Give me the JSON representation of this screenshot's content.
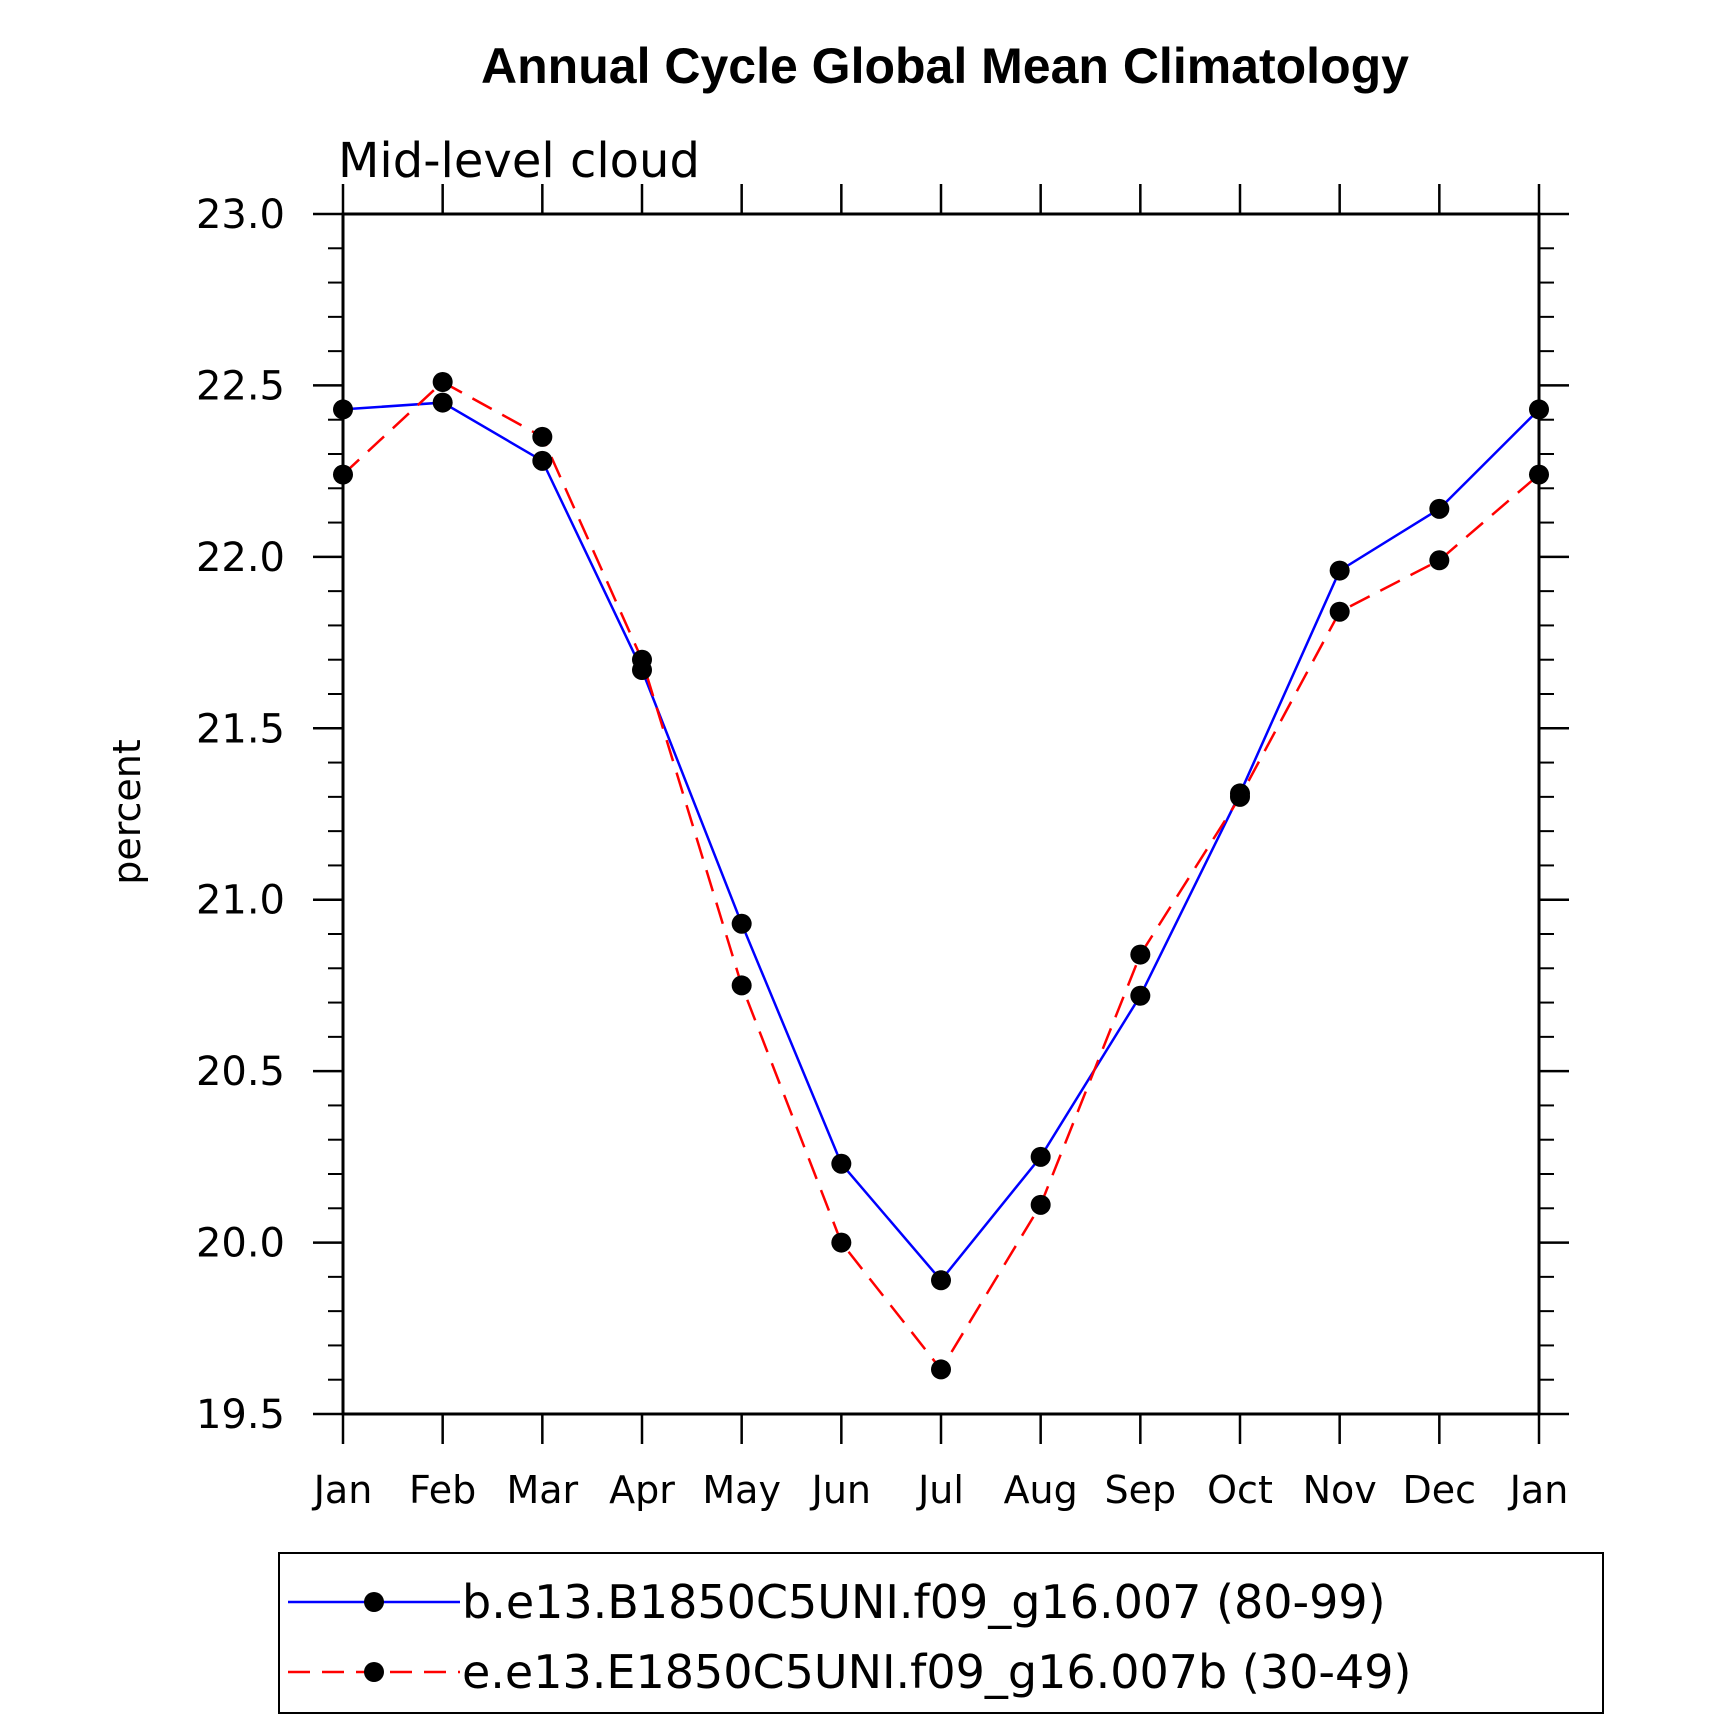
{
  "chart_data": {
    "type": "line",
    "title": "Annual Cycle Global Mean Climatology",
    "subtitle": "Mid-level cloud",
    "xlabel": "",
    "ylabel": "percent",
    "categories": [
      "Jan",
      "Feb",
      "Mar",
      "Apr",
      "May",
      "Jun",
      "Jul",
      "Aug",
      "Sep",
      "Oct",
      "Nov",
      "Dec",
      "Jan"
    ],
    "ylim": [
      19.5,
      23.0
    ],
    "yticks": [
      "19.5",
      "20.0",
      "20.5",
      "21.0",
      "21.5",
      "22.0",
      "22.5",
      "23.0"
    ],
    "grid": false,
    "legend_position": "bottom",
    "series": [
      {
        "name": "b.e13.B1850C5UNI.f09_g16.007 (80-99)",
        "color": "#0000ff",
        "line_style": "solid",
        "marker": "filled-circle",
        "values": [
          22.43,
          22.45,
          22.28,
          21.67,
          20.93,
          20.23,
          19.89,
          20.25,
          20.72,
          21.31,
          21.96,
          22.14,
          22.43
        ]
      },
      {
        "name": "e.e13.E1850C5UNI.f09_g16.007b (30-49)",
        "color": "#ff0000",
        "line_style": "dashed",
        "marker": "filled-circle",
        "values": [
          22.24,
          22.51,
          22.35,
          21.7,
          20.75,
          20.0,
          19.63,
          20.11,
          20.84,
          21.3,
          21.84,
          21.99,
          22.24
        ]
      }
    ]
  }
}
